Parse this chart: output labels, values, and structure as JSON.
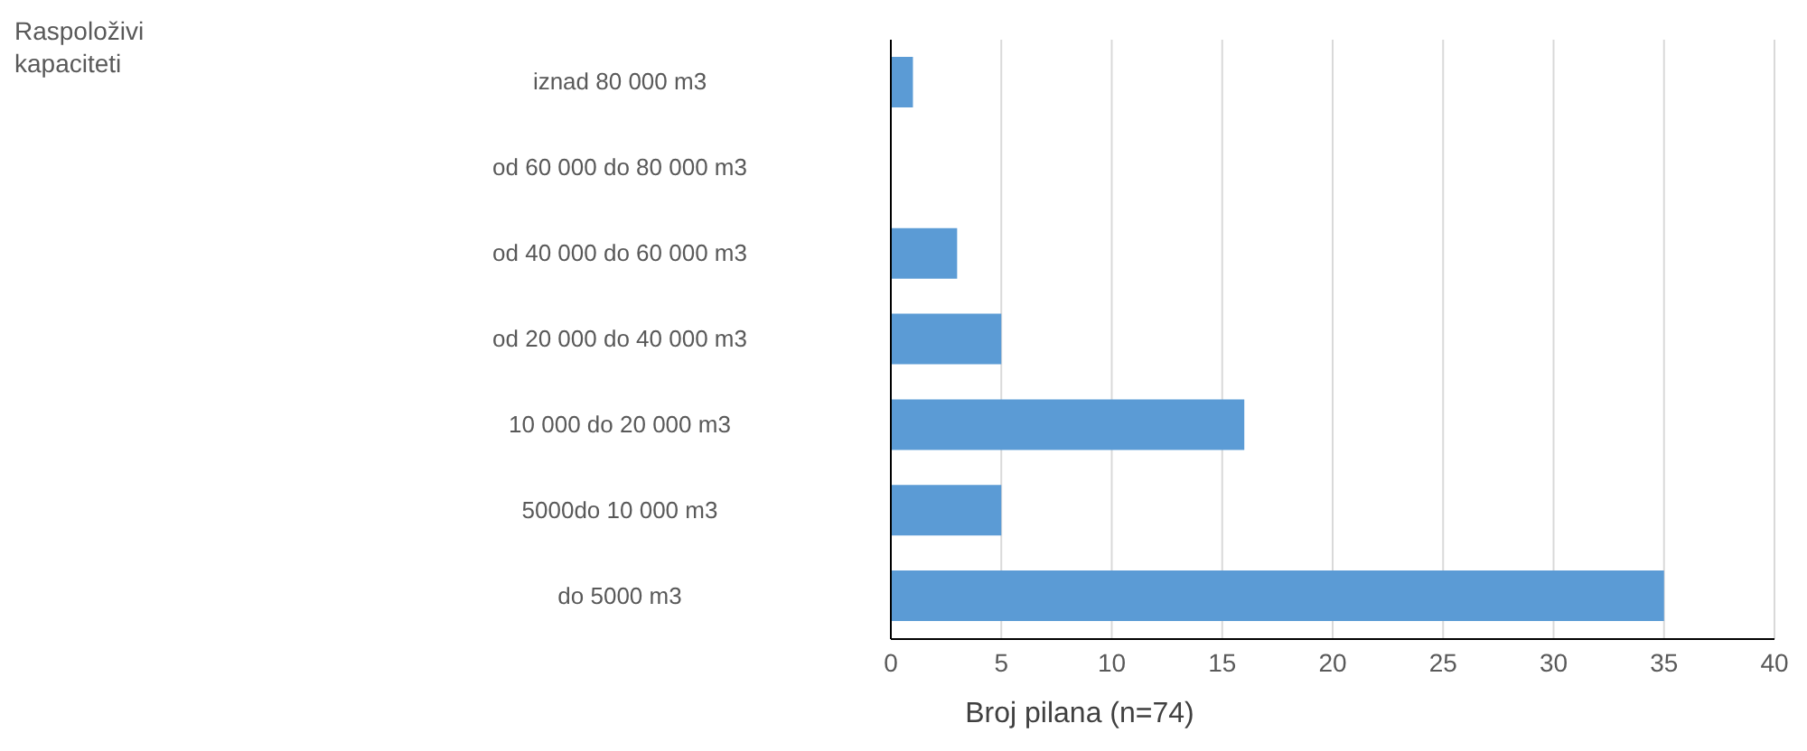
{
  "chart_data": {
    "type": "bar",
    "orientation": "horizontal",
    "annotations": [
      "Raspoloživi kapaciteti"
    ],
    "xlabel": "Broj pilana (n=74)",
    "categories": [
      "iznad 80 000 m3",
      "od 60 000 do 80 000 m3",
      "od 40 000 do 60 000 m3",
      "od 20 000 do 40 000 m3",
      "10 000 do 20 000 m3",
      "5000do 10 000 m3",
      "do 5000 m3"
    ],
    "values": [
      1,
      0,
      3,
      5,
      16,
      5,
      35
    ],
    "color": "#5b9bd5",
    "xlim": [
      0,
      40
    ],
    "xticks": [
      0,
      5,
      10,
      15,
      20,
      25,
      30,
      35,
      40
    ],
    "grid": "x"
  }
}
